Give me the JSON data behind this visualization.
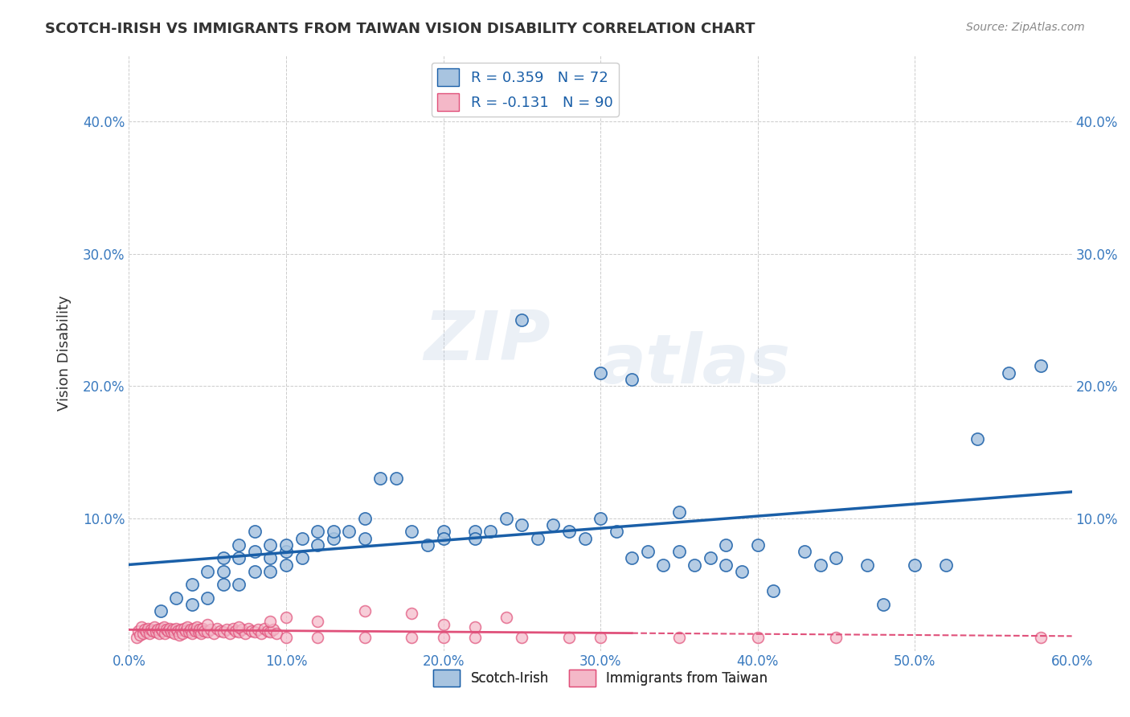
{
  "title": "SCOTCH-IRISH VS IMMIGRANTS FROM TAIWAN VISION DISABILITY CORRELATION CHART",
  "source": "Source: ZipAtlas.com",
  "ylabel": "Vision Disability",
  "xlim": [
    0.0,
    0.6
  ],
  "ylim": [
    0.0,
    0.45
  ],
  "xticks": [
    0.0,
    0.1,
    0.2,
    0.3,
    0.4,
    0.5,
    0.6
  ],
  "yticks": [
    0.0,
    0.1,
    0.2,
    0.3,
    0.4
  ],
  "ytick_labels": [
    "",
    "10.0%",
    "20.0%",
    "30.0%",
    "40.0%"
  ],
  "xtick_labels": [
    "0.0%",
    "10.0%",
    "20.0%",
    "30.0%",
    "40.0%",
    "50.0%",
    "60.0%"
  ],
  "blue_R": 0.359,
  "blue_N": 72,
  "pink_R": -0.131,
  "pink_N": 90,
  "blue_color": "#a8c4e0",
  "blue_line_color": "#1a5fa8",
  "pink_color": "#f4b8c8",
  "pink_line_color": "#e0507a",
  "blue_scatter_x": [
    0.02,
    0.03,
    0.04,
    0.04,
    0.05,
    0.05,
    0.06,
    0.06,
    0.06,
    0.07,
    0.07,
    0.07,
    0.08,
    0.08,
    0.08,
    0.09,
    0.09,
    0.09,
    0.1,
    0.1,
    0.1,
    0.11,
    0.11,
    0.12,
    0.12,
    0.13,
    0.13,
    0.14,
    0.15,
    0.15,
    0.16,
    0.17,
    0.18,
    0.19,
    0.2,
    0.2,
    0.22,
    0.22,
    0.23,
    0.24,
    0.25,
    0.26,
    0.27,
    0.28,
    0.29,
    0.3,
    0.31,
    0.32,
    0.33,
    0.34,
    0.35,
    0.36,
    0.37,
    0.38,
    0.38,
    0.39,
    0.4,
    0.41,
    0.43,
    0.44,
    0.45,
    0.47,
    0.48,
    0.5,
    0.52,
    0.54,
    0.56,
    0.58,
    0.3,
    0.32,
    0.35,
    0.25
  ],
  "blue_scatter_y": [
    0.03,
    0.04,
    0.035,
    0.05,
    0.04,
    0.06,
    0.05,
    0.07,
    0.06,
    0.05,
    0.07,
    0.08,
    0.06,
    0.075,
    0.09,
    0.06,
    0.08,
    0.07,
    0.065,
    0.075,
    0.08,
    0.07,
    0.085,
    0.08,
    0.09,
    0.085,
    0.09,
    0.09,
    0.085,
    0.1,
    0.13,
    0.13,
    0.09,
    0.08,
    0.09,
    0.085,
    0.09,
    0.085,
    0.09,
    0.1,
    0.095,
    0.085,
    0.095,
    0.09,
    0.085,
    0.1,
    0.09,
    0.07,
    0.075,
    0.065,
    0.075,
    0.065,
    0.07,
    0.08,
    0.065,
    0.06,
    0.08,
    0.045,
    0.075,
    0.065,
    0.07,
    0.065,
    0.035,
    0.065,
    0.065,
    0.16,
    0.21,
    0.215,
    0.21,
    0.205,
    0.105,
    0.25
  ],
  "pink_scatter_x": [
    0.005,
    0.006,
    0.007,
    0.008,
    0.009,
    0.01,
    0.011,
    0.012,
    0.013,
    0.014,
    0.015,
    0.016,
    0.017,
    0.018,
    0.019,
    0.02,
    0.021,
    0.022,
    0.023,
    0.024,
    0.025,
    0.026,
    0.027,
    0.028,
    0.029,
    0.03,
    0.031,
    0.032,
    0.033,
    0.034,
    0.035,
    0.036,
    0.037,
    0.038,
    0.039,
    0.04,
    0.041,
    0.042,
    0.043,
    0.044,
    0.045,
    0.046,
    0.047,
    0.048,
    0.05,
    0.052,
    0.054,
    0.056,
    0.058,
    0.06,
    0.062,
    0.064,
    0.066,
    0.068,
    0.07,
    0.072,
    0.074,
    0.076,
    0.078,
    0.08,
    0.082,
    0.084,
    0.086,
    0.088,
    0.09,
    0.092,
    0.094,
    0.1,
    0.12,
    0.15,
    0.18,
    0.2,
    0.22,
    0.25,
    0.28,
    0.3,
    0.35,
    0.4,
    0.45,
    0.58,
    0.1,
    0.12,
    0.15,
    0.18,
    0.2,
    0.22,
    0.24,
    0.05,
    0.07,
    0.09
  ],
  "pink_scatter_y": [
    0.01,
    0.015,
    0.012,
    0.018,
    0.013,
    0.016,
    0.014,
    0.017,
    0.013,
    0.016,
    0.015,
    0.018,
    0.014,
    0.016,
    0.013,
    0.017,
    0.015,
    0.018,
    0.013,
    0.016,
    0.015,
    0.017,
    0.014,
    0.016,
    0.013,
    0.017,
    0.015,
    0.012,
    0.016,
    0.013,
    0.017,
    0.015,
    0.018,
    0.014,
    0.016,
    0.013,
    0.017,
    0.015,
    0.018,
    0.014,
    0.016,
    0.013,
    0.017,
    0.015,
    0.014,
    0.016,
    0.013,
    0.017,
    0.015,
    0.014,
    0.016,
    0.013,
    0.017,
    0.015,
    0.014,
    0.016,
    0.013,
    0.017,
    0.015,
    0.014,
    0.016,
    0.013,
    0.017,
    0.015,
    0.014,
    0.016,
    0.013,
    0.01,
    0.01,
    0.01,
    0.01,
    0.01,
    0.01,
    0.01,
    0.01,
    0.01,
    0.01,
    0.01,
    0.01,
    0.01,
    0.025,
    0.022,
    0.03,
    0.028,
    0.02,
    0.018,
    0.025,
    0.02,
    0.018,
    0.022
  ],
  "watermark_zip": "ZIP",
  "watermark_atlas": "atlas",
  "background_color": "#ffffff",
  "grid_color": "#cccccc"
}
